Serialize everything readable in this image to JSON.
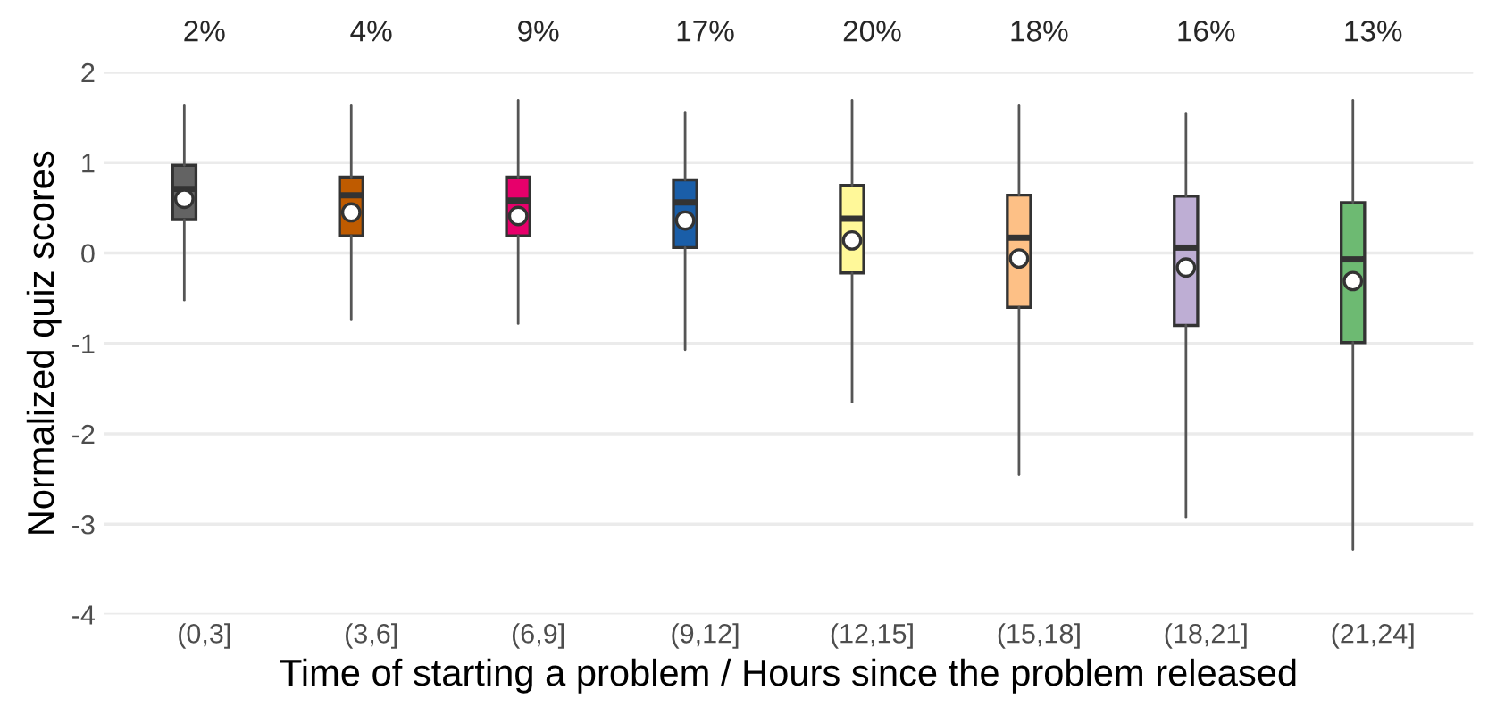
{
  "chart_data": {
    "type": "box",
    "xlabel": "Time of starting a problem / Hours since the problem released",
    "ylabel": "Normalized quiz scores",
    "categories": [
      "(0,3]",
      "(3,6]",
      "(6,9]",
      "(9,12]",
      "(12,15]",
      "(15,18]",
      "(18,21]",
      "(21,24]"
    ],
    "colors": [
      "#636363",
      "#bf5b00",
      "#e7006b",
      "#1a5ea8",
      "#fff899",
      "#fdc086",
      "#beaed4",
      "#6dba72"
    ],
    "boxes": [
      {
        "low": -0.52,
        "q1": 0.37,
        "median": 0.71,
        "q3": 0.97,
        "high": 1.63,
        "mean": 0.6
      },
      {
        "low": -0.74,
        "q1": 0.19,
        "median": 0.64,
        "q3": 0.84,
        "high": 1.63,
        "mean": 0.45
      },
      {
        "low": -0.78,
        "q1": 0.19,
        "median": 0.58,
        "q3": 0.84,
        "high": 1.69,
        "mean": 0.41
      },
      {
        "low": -1.07,
        "q1": 0.06,
        "median": 0.56,
        "q3": 0.81,
        "high": 1.56,
        "mean": 0.36
      },
      {
        "low": -1.65,
        "q1": -0.22,
        "median": 0.38,
        "q3": 0.75,
        "high": 1.69,
        "mean": 0.14
      },
      {
        "low": -2.45,
        "q1": -0.6,
        "median": 0.17,
        "q3": 0.64,
        "high": 1.63,
        "mean": -0.06
      },
      {
        "low": -2.92,
        "q1": -0.8,
        "median": 0.06,
        "q3": 0.63,
        "high": 1.54,
        "mean": -0.16
      },
      {
        "low": -3.28,
        "q1": -0.99,
        "median": -0.07,
        "q3": 0.56,
        "high": 1.69,
        "mean": -0.31
      }
    ],
    "annotations": [
      "2%",
      "4%",
      "9%",
      "17%",
      "20%",
      "18%",
      "16%",
      "13%"
    ],
    "ylim": [
      -4,
      2
    ],
    "yticks": [
      -4,
      -3,
      -2,
      -1,
      0,
      1,
      2
    ],
    "grid": "y",
    "legend": false
  }
}
